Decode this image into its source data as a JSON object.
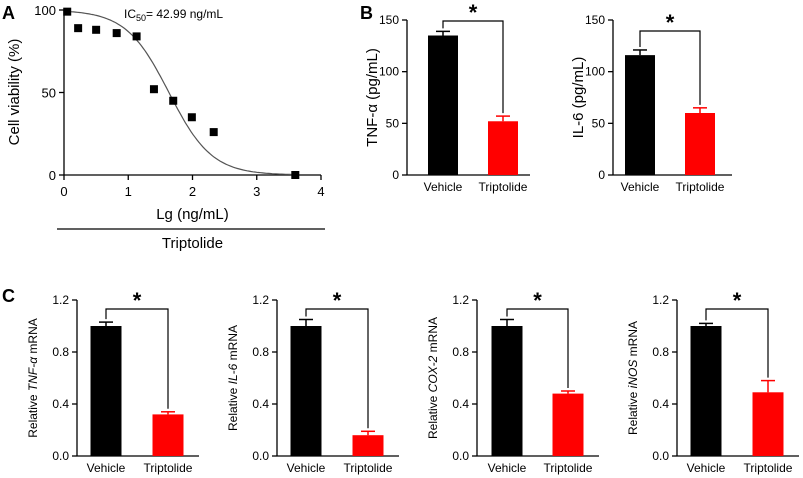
{
  "panels": {
    "a": "A",
    "b": "B",
    "c": "C"
  },
  "colors": {
    "control": "#000000",
    "treatment": "#ff0000",
    "line": "#555555"
  },
  "chart_data": [
    {
      "id": "A",
      "type": "scatter",
      "xlabel": "Lg (ng/mL)",
      "ylabel": "Cell viability (%)",
      "group_label": "Triptolide",
      "annotation": {
        "prefix": "IC",
        "sub": "50",
        "suffix": "= 42.99 ng/mL"
      },
      "xlim": [
        0,
        4
      ],
      "ylim": [
        0,
        100
      ],
      "xticks": [
        0,
        1,
        2,
        3,
        4
      ],
      "yticks": [
        0,
        50,
        100
      ],
      "x": [
        0.05,
        0.22,
        0.5,
        0.82,
        1.13,
        1.4,
        1.7,
        1.99,
        2.33,
        3.6
      ],
      "y": [
        99,
        89,
        88,
        86,
        84,
        52,
        45,
        35,
        26,
        0
      ],
      "fit": {
        "model": "logistic",
        "top": 100,
        "bottom": 0,
        "log_ic50": 1.633,
        "hill": 1.3
      }
    },
    {
      "id": "B1",
      "type": "bar",
      "ylabel": "TNF-α (pg/mL)",
      "categories": [
        "Vehicle",
        "Triptolide"
      ],
      "values": [
        135,
        52
      ],
      "errors": [
        4,
        5
      ],
      "ylim": [
        0,
        150
      ],
      "yticks": [
        0,
        50,
        100,
        150
      ],
      "significance": "*"
    },
    {
      "id": "B2",
      "type": "bar",
      "ylabel": "IL-6 (pg/mL)",
      "categories": [
        "Vehicle",
        "Triptolide"
      ],
      "values": [
        116,
        60
      ],
      "errors": [
        5,
        5
      ],
      "ylim": [
        0,
        150
      ],
      "yticks": [
        0,
        50,
        100,
        150
      ],
      "significance": "*"
    },
    {
      "id": "C1",
      "type": "bar",
      "ylabel": {
        "prefix": "Relative ",
        "gene": "TNF-α",
        "suffix": " mRNA"
      },
      "categories": [
        "Vehicle",
        "Triptolide"
      ],
      "values": [
        1.0,
        0.32
      ],
      "errors": [
        0.03,
        0.02
      ],
      "ylim": [
        0,
        1.2
      ],
      "yticks": [
        "0.0",
        "0.4",
        "0.8",
        "1.2"
      ],
      "significance": "*"
    },
    {
      "id": "C2",
      "type": "bar",
      "ylabel": {
        "prefix": "Relative ",
        "gene": "IL-6",
        "suffix": " mRNA"
      },
      "categories": [
        "Vehicle",
        "Triptolide"
      ],
      "values": [
        1.0,
        0.16
      ],
      "errors": [
        0.05,
        0.03
      ],
      "ylim": [
        0,
        1.2
      ],
      "yticks": [
        "0.0",
        "0.4",
        "0.8",
        "1.2"
      ],
      "significance": "*"
    },
    {
      "id": "C3",
      "type": "bar",
      "ylabel": {
        "prefix": "Relative ",
        "gene": "COX-2",
        "suffix": " mRNA"
      },
      "categories": [
        "Vehicle",
        "Triptolide"
      ],
      "values": [
        1.0,
        0.48
      ],
      "errors": [
        0.05,
        0.02
      ],
      "ylim": [
        0,
        1.2
      ],
      "yticks": [
        "0.0",
        "0.4",
        "0.8",
        "1.2"
      ],
      "significance": "*"
    },
    {
      "id": "C4",
      "type": "bar",
      "ylabel": {
        "prefix": "Relative ",
        "gene": "iNOS",
        "suffix": " mRNA"
      },
      "categories": [
        "Vehicle",
        "Triptolide"
      ],
      "values": [
        1.0,
        0.49
      ],
      "errors": [
        0.02,
        0.09
      ],
      "ylim": [
        0,
        1.2
      ],
      "yticks": [
        "0.0",
        "0.4",
        "0.8",
        "1.2"
      ],
      "significance": "*"
    }
  ]
}
